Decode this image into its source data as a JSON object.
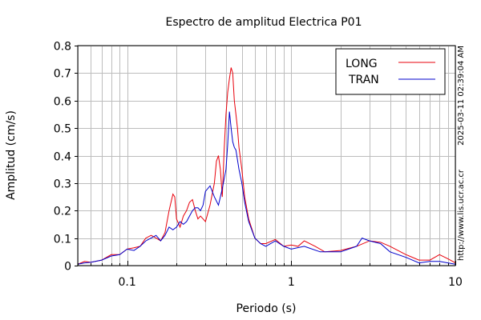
{
  "chart_data": {
    "type": "line",
    "title": "Espectro de amplitud Electrica P01",
    "xlabel": "Periodo (s)",
    "ylabel": "Amplitud (cm/s)",
    "x_scale": "log",
    "xlim": [
      0.05,
      10
    ],
    "ylim": [
      0,
      0.8
    ],
    "x_ticks": [
      {
        "value": 0.1,
        "label": "0.1"
      },
      {
        "value": 1,
        "label": "1"
      },
      {
        "value": 10,
        "label": "10"
      }
    ],
    "y_ticks": [
      {
        "value": 0,
        "label": "0"
      },
      {
        "value": 0.1,
        "label": "0.1"
      },
      {
        "value": 0.2,
        "label": "0.2"
      },
      {
        "value": 0.3,
        "label": "0.3"
      },
      {
        "value": 0.4,
        "label": "0.4"
      },
      {
        "value": 0.5,
        "label": "0.5"
      },
      {
        "value": 0.6,
        "label": "0.6"
      },
      {
        "value": 0.7,
        "label": "0.7"
      },
      {
        "value": 0.8,
        "label": "0.8"
      }
    ],
    "grid": true,
    "legend_position": "top-right",
    "series": [
      {
        "name": "LONG",
        "color": "#e8000b",
        "x": [
          0.05,
          0.055,
          0.06,
          0.07,
          0.08,
          0.09,
          0.1,
          0.11,
          0.12,
          0.13,
          0.14,
          0.15,
          0.16,
          0.17,
          0.18,
          0.19,
          0.195,
          0.2,
          0.21,
          0.22,
          0.23,
          0.24,
          0.25,
          0.26,
          0.27,
          0.28,
          0.3,
          0.32,
          0.34,
          0.35,
          0.36,
          0.37,
          0.38,
          0.39,
          0.4,
          0.41,
          0.42,
          0.43,
          0.44,
          0.45,
          0.46,
          0.47,
          0.48,
          0.5,
          0.52,
          0.55,
          0.6,
          0.65,
          0.7,
          0.8,
          0.9,
          1.0,
          1.1,
          1.2,
          1.4,
          1.6,
          2.0,
          2.5,
          3.0,
          3.5,
          4.0,
          5.0,
          6.0,
          7.0,
          8.0,
          9.0,
          10.0
        ],
        "values": [
          0.005,
          0.015,
          0.012,
          0.02,
          0.04,
          0.04,
          0.06,
          0.065,
          0.07,
          0.1,
          0.11,
          0.1,
          0.09,
          0.12,
          0.2,
          0.26,
          0.25,
          0.17,
          0.14,
          0.18,
          0.2,
          0.23,
          0.24,
          0.2,
          0.17,
          0.18,
          0.16,
          0.22,
          0.3,
          0.38,
          0.4,
          0.35,
          0.25,
          0.42,
          0.55,
          0.63,
          0.68,
          0.72,
          0.7,
          0.6,
          0.55,
          0.5,
          0.43,
          0.35,
          0.25,
          0.17,
          0.1,
          0.08,
          0.08,
          0.095,
          0.07,
          0.075,
          0.07,
          0.09,
          0.07,
          0.05,
          0.055,
          0.07,
          0.09,
          0.085,
          0.07,
          0.04,
          0.02,
          0.02,
          0.04,
          0.025,
          0.01
        ]
      },
      {
        "name": "TRAN",
        "color": "#0000cc",
        "x": [
          0.05,
          0.055,
          0.06,
          0.07,
          0.08,
          0.09,
          0.1,
          0.11,
          0.12,
          0.13,
          0.14,
          0.15,
          0.16,
          0.17,
          0.18,
          0.19,
          0.2,
          0.21,
          0.22,
          0.23,
          0.24,
          0.25,
          0.26,
          0.27,
          0.28,
          0.29,
          0.3,
          0.32,
          0.34,
          0.36,
          0.38,
          0.4,
          0.41,
          0.42,
          0.43,
          0.44,
          0.45,
          0.46,
          0.48,
          0.5,
          0.52,
          0.55,
          0.6,
          0.65,
          0.7,
          0.8,
          0.9,
          1.0,
          1.2,
          1.5,
          2.0,
          2.5,
          2.7,
          3.0,
          3.5,
          4.0,
          5.0,
          6.0,
          7.0,
          8.0,
          9.0,
          10.0
        ],
        "values": [
          0.005,
          0.01,
          0.012,
          0.02,
          0.035,
          0.04,
          0.06,
          0.055,
          0.07,
          0.09,
          0.1,
          0.11,
          0.09,
          0.11,
          0.14,
          0.13,
          0.14,
          0.16,
          0.15,
          0.16,
          0.18,
          0.2,
          0.21,
          0.21,
          0.2,
          0.22,
          0.27,
          0.29,
          0.25,
          0.22,
          0.28,
          0.35,
          0.44,
          0.56,
          0.5,
          0.45,
          0.43,
          0.42,
          0.35,
          0.3,
          0.23,
          0.16,
          0.1,
          0.08,
          0.07,
          0.09,
          0.07,
          0.06,
          0.07,
          0.05,
          0.05,
          0.07,
          0.1,
          0.09,
          0.08,
          0.05,
          0.03,
          0.01,
          0.015,
          0.015,
          0.01,
          0.005
        ]
      }
    ],
    "side_text": {
      "timestamp": "2025-03-11 02:39:04 AM",
      "url": "http://www.lis.ucr.ac.cr"
    }
  }
}
